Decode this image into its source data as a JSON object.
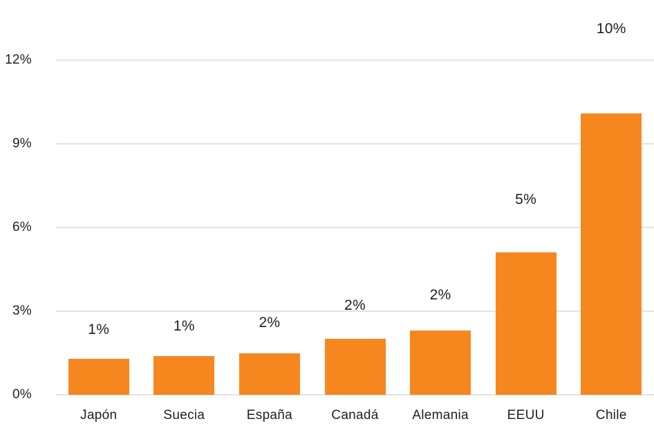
{
  "chart_data": {
    "type": "bar",
    "title": "",
    "xlabel": "",
    "ylabel": "",
    "categories": [
      "Japón",
      "Suecia",
      "España",
      "Canadá",
      "Alemania",
      "EEUU",
      "Chile"
    ],
    "values": [
      1.3,
      1.4,
      1.5,
      2.0,
      2.3,
      5.1,
      10.1
    ],
    "data_labels": [
      "1%",
      "1%",
      "2%",
      "2%",
      "2%",
      "5%",
      "10%"
    ],
    "ylim": [
      0,
      12
    ],
    "yticks": [
      0,
      3,
      6,
      9,
      12
    ],
    "ytick_labels": [
      "0%",
      "3%",
      "6%",
      "9%",
      "12%"
    ],
    "grid": true,
    "legend": false,
    "colors": {
      "bar": "#F6871F",
      "text": "#1F1F1F",
      "gridline": "#E3E3E3"
    }
  }
}
